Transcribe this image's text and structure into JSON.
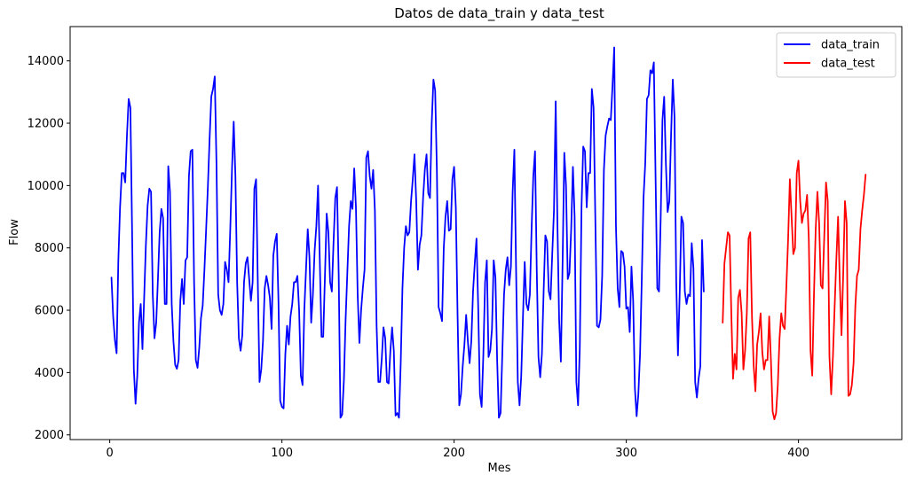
{
  "chart_data": {
    "type": "line",
    "title": "Datos de data_train y data_test",
    "xlabel": "Mes",
    "ylabel": "Flow",
    "xlim": [
      -23,
      460
    ],
    "ylim": [
      1850,
      15100
    ],
    "xticks": [
      0,
      100,
      200,
      300,
      400
    ],
    "yticks": [
      2000,
      4000,
      6000,
      8000,
      10000,
      12000,
      14000
    ],
    "grid": false,
    "legend_position": "top-right",
    "series": [
      {
        "name": "data_train",
        "color": "#0000ff",
        "x_start": 1,
        "values": [
          7050,
          5800,
          5050,
          4620,
          7600,
          9300,
          10400,
          10400,
          10100,
          11600,
          12780,
          12500,
          8500,
          4100,
          3000,
          3900,
          5600,
          6200,
          4750,
          6400,
          8100,
          9350,
          9900,
          9800,
          6500,
          5100,
          5600,
          7000,
          8500,
          9250,
          8950,
          6200,
          6200,
          10620,
          9800,
          6200,
          5000,
          4250,
          4120,
          4400,
          6300,
          7000,
          6200,
          7600,
          7700,
          10300,
          11100,
          11150,
          6900,
          4400,
          4150,
          4800,
          5750,
          6150,
          7300,
          8600,
          9950,
          11500,
          12860,
          13100,
          13500,
          10700,
          6500,
          6000,
          5850,
          6200,
          7550,
          7300,
          6900,
          8600,
          10500,
          12050,
          10300,
          6900,
          5100,
          4700,
          5200,
          6900,
          7500,
          7700,
          7000,
          6300,
          6900,
          9900,
          10200,
          6900,
          3700,
          4100,
          5000,
          6700,
          7100,
          6800,
          6400,
          5400,
          7750,
          8200,
          8450,
          6300,
          3100,
          2900,
          2850,
          4600,
          5500,
          4900,
          5800,
          6200,
          6900,
          6900,
          7100,
          6000,
          3900,
          3600,
          6000,
          7300,
          8600,
          7700,
          5600,
          6500,
          7900,
          8700,
          10000,
          7600,
          5150,
          5150,
          7100,
          9100,
          8500,
          6900,
          6600,
          8200,
          9600,
          9950,
          7100,
          2550,
          2650,
          3750,
          5700,
          7200,
          8700,
          9500,
          9250,
          10550,
          9300,
          6500,
          4950,
          6000,
          6700,
          7300,
          10900,
          11100,
          10300,
          9900,
          10500,
          9200,
          5500,
          3700,
          3700,
          4450,
          5450,
          5100,
          3700,
          3650,
          4700,
          5450,
          4700,
          2620,
          2700,
          2550,
          4300,
          6700,
          8000,
          8700,
          8400,
          8500,
          9500,
          10200,
          11000,
          9500,
          7300,
          8100,
          8400,
          9600,
          10500,
          11000,
          9750,
          9600,
          12000,
          13400,
          13050,
          10500,
          6100,
          5900,
          5650,
          8000,
          9000,
          9500,
          8550,
          8600,
          10200,
          10600,
          9300,
          5900,
          2950,
          3300,
          4200,
          4900,
          5850,
          5000,
          4300,
          5000,
          6600,
          7500,
          8300,
          6100,
          3300,
          2900,
          4600,
          6900,
          7600,
          4500,
          4700,
          5400,
          7600,
          7050,
          4400,
          2550,
          2700,
          4600,
          6500,
          7300,
          7700,
          6800,
          7400,
          9800,
          11150,
          7300,
          3700,
          2950,
          3900,
          5800,
          7550,
          6200,
          6000,
          6500,
          8600,
          10300,
          11100,
          7300,
          4500,
          3850,
          4600,
          6600,
          8400,
          8200,
          6600,
          6350,
          7800,
          9200,
          12700,
          8800,
          5700,
          4350,
          7500,
          11050,
          10000,
          7000,
          7200,
          8600,
          10600,
          9000,
          3700,
          2950,
          4800,
          9300,
          11250,
          11100,
          9300,
          10400,
          10400,
          13100,
          12500,
          9000,
          5500,
          5450,
          5700,
          7100,
          10500,
          11600,
          11900,
          12150,
          12100,
          13200,
          14430,
          8700,
          6700,
          6100,
          7900,
          7850,
          7400,
          6050,
          6100,
          5300,
          7400,
          6300,
          3500,
          2600,
          3300,
          4600,
          7000,
          9600,
          10700,
          12780,
          12900,
          13700,
          13600,
          13950,
          10300,
          6700,
          6600,
          9000,
          12100,
          12850,
          10700,
          9150,
          9500,
          11600,
          13400,
          12200,
          6900,
          4550,
          6500,
          9000,
          8800,
          6600,
          6200,
          6500,
          6450,
          8150,
          7350,
          3700,
          3200,
          3800,
          4200,
          8250,
          6600
        ]
      },
      {
        "name": "data_test",
        "color": "#ff0000",
        "x_start": 356,
        "values": [
          5600,
          7500,
          8000,
          8500,
          8400,
          5900,
          3800,
          4600,
          4100,
          6400,
          6650,
          5900,
          4100,
          4700,
          5900,
          8300,
          8500,
          5800,
          4200,
          3400,
          4900,
          5300,
          5900,
          4650,
          4100,
          4400,
          4400,
          5800,
          4400,
          2750,
          2500,
          2700,
          3600,
          5100,
          5900,
          5500,
          5400,
          6800,
          8300,
          10200,
          9000,
          7800,
          8000,
          10400,
          10800,
          9500,
          8800,
          9100,
          9200,
          9700,
          8300,
          4700,
          3900,
          6500,
          8600,
          9800,
          8800,
          6800,
          6700,
          8400,
          10100,
          9500,
          4500,
          3300,
          4500,
          6100,
          7650,
          9000,
          6900,
          5200,
          7200,
          9500,
          8800,
          3250,
          3300,
          3600,
          4300,
          6100,
          7100,
          7300,
          8600,
          9200,
          9700,
          10350
        ]
      }
    ]
  }
}
